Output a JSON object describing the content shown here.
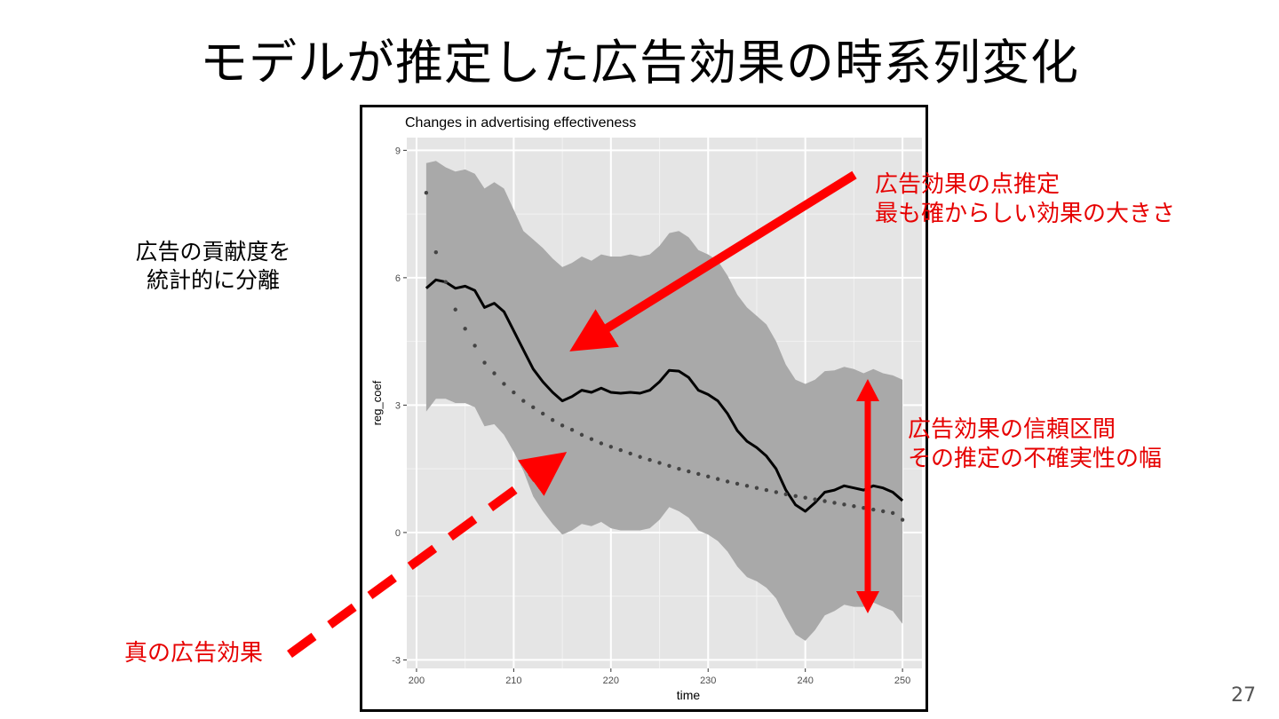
{
  "slide": {
    "title": "モデルが推定した広告効果の時系列変化",
    "page_number": "27"
  },
  "side_note": {
    "line1": "広告の貢献度を",
    "line2": "統計的に分離"
  },
  "annotations": {
    "point_estimate_line1": "広告効果の点推定",
    "point_estimate_line2": "最も確からしい効果の大きさ",
    "ci_line1": "広告効果の信頼区間",
    "ci_line2": "その推定の不確実性の幅",
    "true_effect": "真の広告効果",
    "color": "#ff0000"
  },
  "chart_data": {
    "type": "line",
    "title": "Changes in advertising effectiveness",
    "xlabel": "time",
    "ylabel": "reg_coef",
    "xlim": [
      199,
      252
    ],
    "ylim": [
      -3.2,
      9.3
    ],
    "x_ticks": [
      200,
      210,
      220,
      230,
      240,
      250
    ],
    "y_ticks": [
      -3,
      0,
      3,
      6,
      9
    ],
    "grid": true,
    "panel_background": "#e5e5e5",
    "band_color": "#a9a9a9",
    "series": [
      {
        "style": "solid",
        "x": [
          201,
          202,
          203,
          204,
          205,
          206,
          207,
          208,
          209,
          210,
          211,
          212,
          213,
          214,
          215,
          216,
          217,
          218,
          219,
          220,
          221,
          222,
          223,
          224,
          225,
          226,
          227,
          228,
          229,
          230,
          231,
          232,
          233,
          234,
          235,
          236,
          237,
          238,
          239,
          240,
          241,
          242,
          243,
          244,
          245,
          246,
          247,
          248,
          249,
          250
        ],
        "y": [
          5.75,
          5.95,
          5.9,
          5.75,
          5.8,
          5.7,
          5.3,
          5.4,
          5.2,
          4.75,
          4.3,
          3.85,
          3.55,
          3.3,
          3.1,
          3.2,
          3.35,
          3.3,
          3.4,
          3.3,
          3.28,
          3.3,
          3.28,
          3.35,
          3.55,
          3.82,
          3.8,
          3.65,
          3.35,
          3.25,
          3.1,
          2.8,
          2.4,
          2.15,
          2.0,
          1.8,
          1.5,
          1.0,
          0.65,
          0.5,
          0.7,
          0.95,
          1.0,
          1.1,
          1.05,
          1.0,
          1.1,
          1.05,
          0.95,
          0.75
        ]
      },
      {
        "style": "dotted",
        "x": [
          201,
          202,
          203,
          204,
          205,
          206,
          207,
          208,
          209,
          210,
          211,
          212,
          213,
          214,
          215,
          216,
          217,
          218,
          219,
          220,
          221,
          222,
          223,
          224,
          225,
          226,
          227,
          228,
          229,
          230,
          231,
          232,
          233,
          234,
          235,
          236,
          237,
          238,
          239,
          240,
          241,
          242,
          243,
          244,
          245,
          246,
          247,
          248,
          249,
          250
        ],
        "y": [
          8.0,
          6.6,
          5.9,
          5.25,
          4.8,
          4.4,
          4.0,
          3.75,
          3.5,
          3.3,
          3.1,
          2.95,
          2.8,
          2.65,
          2.52,
          2.42,
          2.3,
          2.2,
          2.1,
          2.02,
          1.94,
          1.86,
          1.78,
          1.71,
          1.64,
          1.57,
          1.5,
          1.44,
          1.38,
          1.32,
          1.26,
          1.2,
          1.15,
          1.1,
          1.05,
          1.0,
          0.95,
          0.9,
          0.86,
          0.82,
          0.78,
          0.74,
          0.7,
          0.66,
          0.62,
          0.58,
          0.54,
          0.5,
          0.46,
          0.3
        ]
      }
    ],
    "band": {
      "x": [
        201,
        202,
        203,
        204,
        205,
        206,
        207,
        208,
        209,
        210,
        211,
        212,
        213,
        214,
        215,
        216,
        217,
        218,
        219,
        220,
        221,
        222,
        223,
        224,
        225,
        226,
        227,
        228,
        229,
        230,
        231,
        232,
        233,
        234,
        235,
        236,
        237,
        238,
        239,
        240,
        241,
        242,
        243,
        244,
        245,
        246,
        247,
        248,
        249,
        250
      ],
      "upper": [
        8.7,
        8.75,
        8.6,
        8.5,
        8.55,
        8.45,
        8.1,
        8.25,
        8.1,
        7.6,
        7.1,
        6.9,
        6.7,
        6.45,
        6.25,
        6.35,
        6.5,
        6.4,
        6.55,
        6.5,
        6.5,
        6.55,
        6.5,
        6.55,
        6.75,
        7.05,
        7.1,
        6.95,
        6.65,
        6.55,
        6.4,
        6.05,
        5.6,
        5.3,
        5.1,
        4.9,
        4.5,
        3.95,
        3.6,
        3.5,
        3.6,
        3.8,
        3.82,
        3.9,
        3.85,
        3.75,
        3.85,
        3.75,
        3.7,
        3.6
      ],
      "lower": [
        2.85,
        3.15,
        3.15,
        3.05,
        3.05,
        2.95,
        2.5,
        2.55,
        2.3,
        1.9,
        1.45,
        0.85,
        0.5,
        0.2,
        -0.05,
        0.05,
        0.2,
        0.15,
        0.25,
        0.1,
        0.05,
        0.05,
        0.05,
        0.1,
        0.3,
        0.6,
        0.5,
        0.35,
        0.05,
        -0.05,
        -0.2,
        -0.45,
        -0.8,
        -1.05,
        -1.15,
        -1.3,
        -1.55,
        -2.0,
        -2.4,
        -2.55,
        -2.3,
        -1.95,
        -1.85,
        -1.7,
        -1.75,
        -1.75,
        -1.65,
        -1.75,
        -1.85,
        -2.15
      ]
    }
  }
}
